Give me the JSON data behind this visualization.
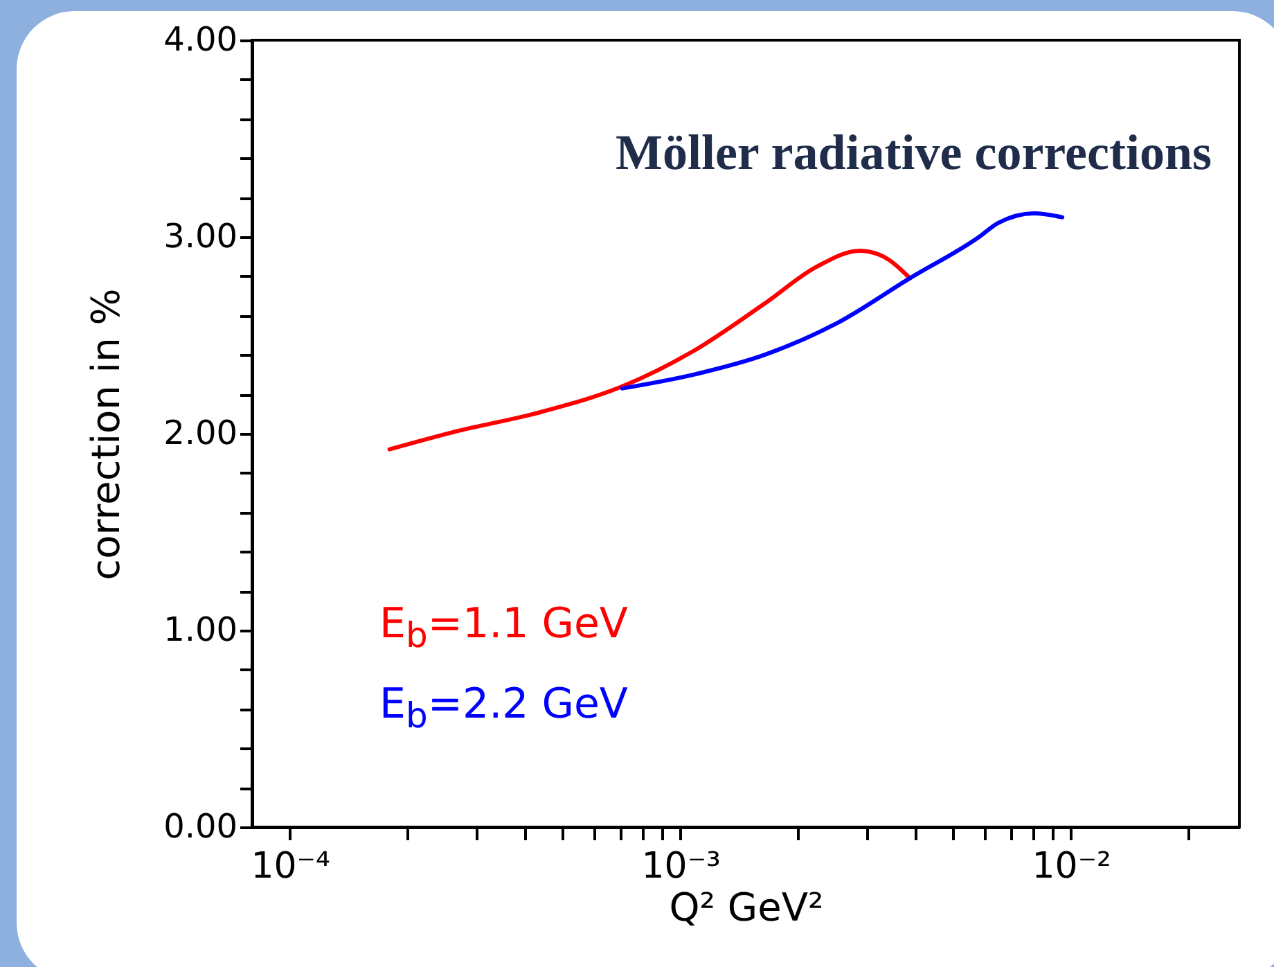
{
  "chart_data": {
    "type": "line",
    "title": "Möller radiative corrections",
    "xlabel": "Q²  GeV²",
    "ylabel": "correction in %",
    "log": "x",
    "xlim": [
      8e-05,
      0.027
    ],
    "xticks": [
      {
        "value": 0.0001,
        "label": "10⁻⁴"
      },
      {
        "value": 0.0002,
        "label": null
      },
      {
        "value": 0.0003,
        "label": null
      },
      {
        "value": 0.0004,
        "label": null
      },
      {
        "value": 0.0005,
        "label": null
      },
      {
        "value": 0.0006,
        "label": null
      },
      {
        "value": 0.0007,
        "label": null
      },
      {
        "value": 0.0008,
        "label": null
      },
      {
        "value": 0.0009,
        "label": null
      },
      {
        "value": 0.001,
        "label": "10⁻³"
      },
      {
        "value": 0.002,
        "label": null
      },
      {
        "value": 0.003,
        "label": null
      },
      {
        "value": 0.004,
        "label": null
      },
      {
        "value": 0.005,
        "label": null
      },
      {
        "value": 0.006,
        "label": null
      },
      {
        "value": 0.007,
        "label": null
      },
      {
        "value": 0.008,
        "label": null
      },
      {
        "value": 0.009,
        "label": null
      },
      {
        "value": 0.01,
        "label": "10⁻²"
      },
      {
        "value": 0.02,
        "label": null
      }
    ],
    "ylim": [
      0,
      4
    ],
    "yticks": [
      {
        "value": 0,
        "label": "0.00"
      },
      {
        "value": 0.2,
        "label": null
      },
      {
        "value": 0.4,
        "label": null
      },
      {
        "value": 0.6,
        "label": null
      },
      {
        "value": 0.8,
        "label": null
      },
      {
        "value": 1,
        "label": "1.00"
      },
      {
        "value": 1.2,
        "label": null
      },
      {
        "value": 1.4,
        "label": null
      },
      {
        "value": 1.6,
        "label": null
      },
      {
        "value": 1.8,
        "label": null
      },
      {
        "value": 2,
        "label": "2.00"
      },
      {
        "value": 2.2,
        "label": null
      },
      {
        "value": 2.4,
        "label": null
      },
      {
        "value": 2.6,
        "label": null
      },
      {
        "value": 2.8,
        "label": null
      },
      {
        "value": 3,
        "label": "3.00"
      },
      {
        "value": 3.2,
        "label": null
      },
      {
        "value": 3.4,
        "label": null
      },
      {
        "value": 3.6,
        "label": null
      },
      {
        "value": 3.8,
        "label": null
      },
      {
        "value": 4,
        "label": "4.00"
      }
    ],
    "grid": false,
    "legend": "bottom left",
    "line_style": "solid",
    "series": [
      {
        "name": "E$_{b}$=1.1  GeV",
        "color": "#ff0000",
        "x": [
          0.00018,
          0.000265,
          0.00044,
          0.00071,
          0.00108,
          0.00164,
          0.00224,
          0.00288,
          0.00331,
          0.00387
        ],
        "values": [
          1.92,
          2.01,
          2.11,
          2.24,
          2.42,
          2.66,
          2.85,
          2.93,
          2.9,
          2.79
        ]
      },
      {
        "name": "E$_{b}$=2.2  GeV",
        "color": "#0000ff",
        "x": [
          0.00071,
          0.00108,
          0.00164,
          0.00251,
          0.00387,
          0.00582,
          0.0065,
          0.00805,
          0.0095
        ],
        "values": [
          2.23,
          2.3,
          2.4,
          2.56,
          2.79,
          3.0,
          3.07,
          3.12,
          3.1
        ]
      }
    ]
  }
}
